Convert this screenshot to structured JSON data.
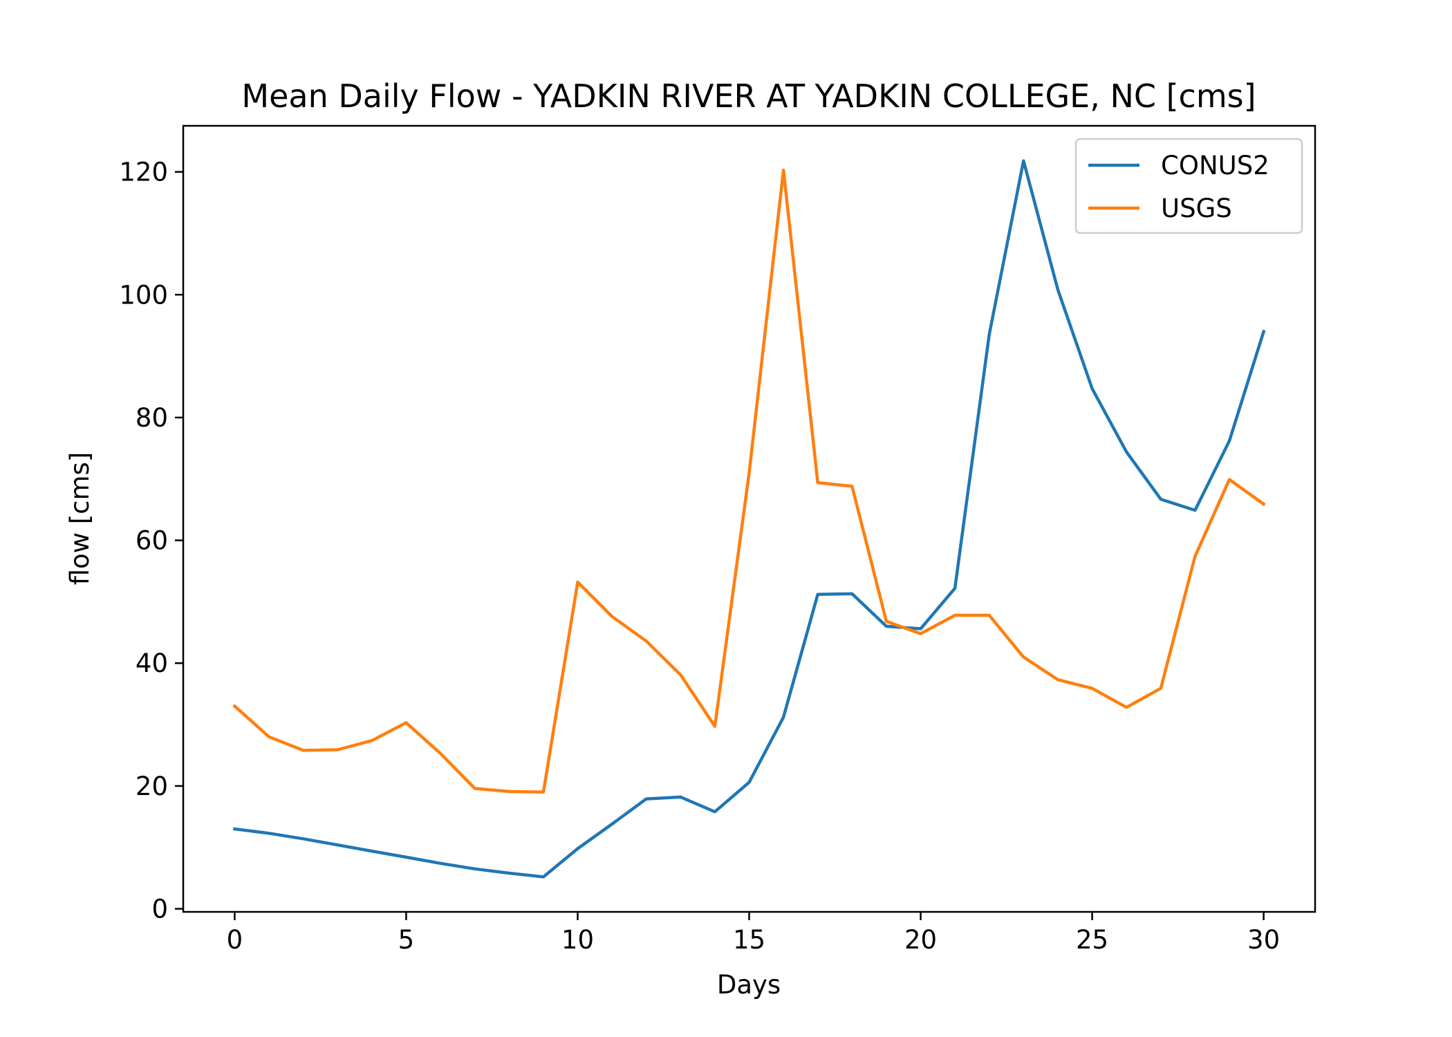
{
  "chart_data": {
    "type": "line",
    "title": "Mean Daily Flow - YADKIN RIVER AT YADKIN COLLEGE, NC [cms]",
    "xlabel": "Days",
    "ylabel": "flow [cms]",
    "xlim": [
      -1.5,
      31.5
    ],
    "ylim": [
      -0.5,
      127.5
    ],
    "xticks": [
      0,
      5,
      10,
      15,
      20,
      25,
      30
    ],
    "yticks": [
      0,
      20,
      40,
      60,
      80,
      100,
      120
    ],
    "legend_position": "top-right",
    "grid": false,
    "x": [
      0,
      1,
      2,
      3,
      4,
      5,
      6,
      7,
      8,
      9,
      10,
      11,
      12,
      13,
      14,
      15,
      16,
      17,
      18,
      19,
      20,
      21,
      22,
      23,
      24,
      25,
      26,
      27,
      28,
      29,
      30
    ],
    "series": [
      {
        "name": "CONUS2",
        "color": "#1f77b4",
        "values": [
          13.0,
          12.3,
          11.4,
          10.4,
          9.4,
          8.4,
          7.4,
          6.5,
          5.8,
          5.2,
          9.8,
          13.8,
          17.9,
          18.2,
          15.8,
          20.6,
          31.2,
          51.2,
          51.3,
          46.0,
          45.6,
          52.2,
          93.5,
          121.8,
          100.8,
          84.7,
          74.4,
          66.7,
          64.9,
          76.2,
          94.0
        ]
      },
      {
        "name": "USGS",
        "color": "#ff7f0e",
        "values": [
          33.0,
          28.0,
          25.8,
          25.9,
          27.4,
          30.3,
          25.3,
          19.6,
          19.1,
          19.0,
          53.2,
          47.6,
          43.6,
          38.1,
          29.7,
          71.0,
          120.3,
          69.4,
          68.8,
          46.8,
          44.8,
          47.8,
          47.8,
          41.0,
          37.3,
          35.9,
          32.8,
          35.9,
          57.4,
          69.9,
          65.9
        ]
      }
    ]
  }
}
